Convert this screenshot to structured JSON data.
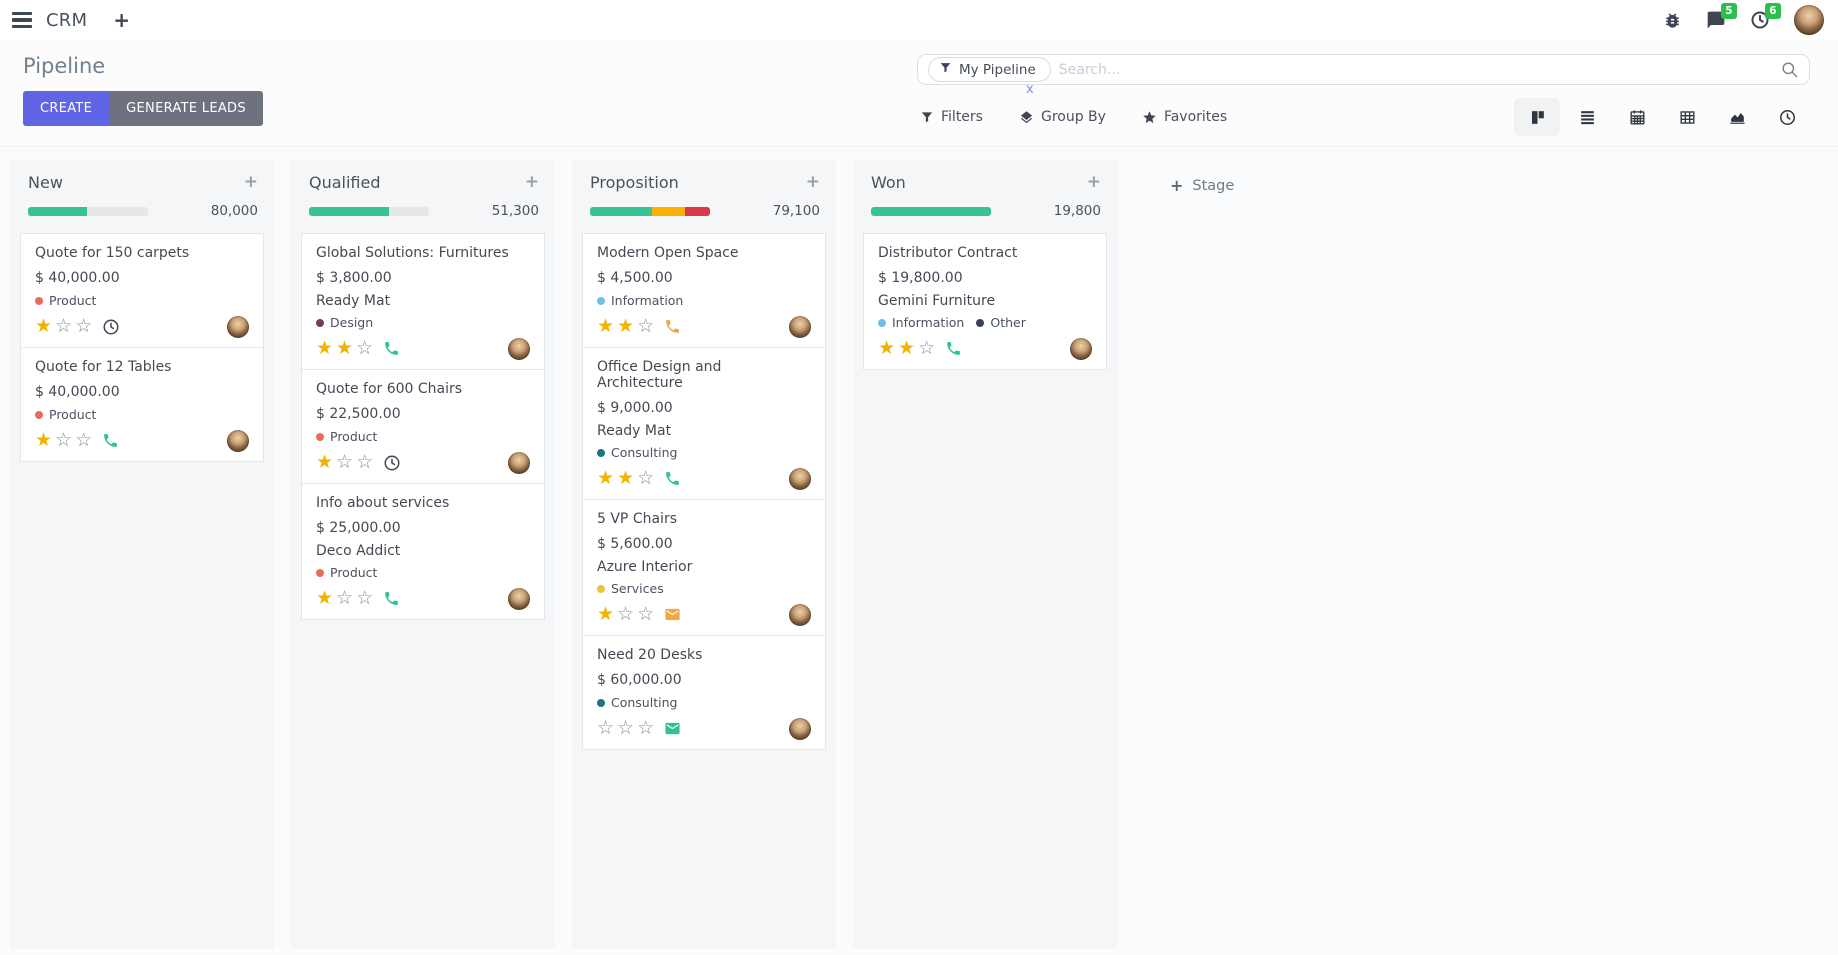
{
  "navbar": {
    "app_name": "CRM",
    "messages_badge": "5",
    "activities_badge": "6"
  },
  "control_panel": {
    "title": "Pipeline",
    "buttons": {
      "create": "CREATE",
      "generate_leads": "GENERATE LEADS"
    },
    "search": {
      "facet": "My Pipeline",
      "facet_remove": "x",
      "placeholder": "Search..."
    },
    "menus": {
      "filters": "Filters",
      "group_by": "Group By",
      "favorites": "Favorites"
    },
    "view_switcher": [
      "kanban",
      "list",
      "calendar",
      "pivot",
      "graph",
      "activity"
    ],
    "active_view": "kanban"
  },
  "kanban": {
    "stage_add_label": "Stage",
    "colors": {
      "green": "#39c392",
      "orange": "#fbb005",
      "red": "#d9394a",
      "track": "#e5e7e9"
    },
    "columns": [
      {
        "name": "New",
        "total": "80,000",
        "progress": [
          {
            "color": "#39c392",
            "pct": 49
          }
        ],
        "cards": [
          {
            "title": "Quote for 150 carpets",
            "amount": "$ 40,000.00",
            "tags": [
              {
                "color": "#e86c5a",
                "label": "Product"
              }
            ],
            "stars": 1,
            "activity_icon": "clock"
          },
          {
            "title": "Quote for 12 Tables",
            "amount": "$ 40,000.00",
            "tags": [
              {
                "color": "#e86c5a",
                "label": "Product"
              }
            ],
            "stars": 1,
            "activity_icon": "phone-green"
          }
        ]
      },
      {
        "name": "Qualified",
        "total": "51,300",
        "progress": [
          {
            "color": "#39c392",
            "pct": 67
          }
        ],
        "cards": [
          {
            "title": "Global Solutions: Furnitures",
            "amount": "$ 3,800.00",
            "partner": "Ready Mat",
            "tags": [
              {
                "color": "#6d3f62",
                "label": "Design"
              }
            ],
            "stars": 2,
            "activity_icon": "phone-green"
          },
          {
            "title": "Quote for 600 Chairs",
            "amount": "$ 22,500.00",
            "tags": [
              {
                "color": "#e86c5a",
                "label": "Product"
              }
            ],
            "stars": 1,
            "activity_icon": "clock"
          },
          {
            "title": "Info about services",
            "amount": "$ 25,000.00",
            "partner": "Deco Addict",
            "tags": [
              {
                "color": "#e86c5a",
                "label": "Product"
              }
            ],
            "stars": 1,
            "activity_icon": "phone-green"
          }
        ]
      },
      {
        "name": "Proposition",
        "total": "79,100",
        "progress": [
          {
            "color": "#39c392",
            "pct": 52
          },
          {
            "color": "#fbb005",
            "pct": 27
          },
          {
            "color": "#d9394a",
            "pct": 21
          }
        ],
        "cards": [
          {
            "title": "Modern Open Space",
            "amount": "$ 4,500.00",
            "tags": [
              {
                "color": "#6fc0e8",
                "label": "Information"
              }
            ],
            "stars": 2,
            "activity_icon": "phone-orange"
          },
          {
            "title": "Office Design and Architecture",
            "amount": "$ 9,000.00",
            "partner": "Ready Mat",
            "tags": [
              {
                "color": "#1b7580",
                "label": "Consulting"
              }
            ],
            "stars": 2,
            "activity_icon": "phone-green"
          },
          {
            "title": "5 VP Chairs",
            "amount": "$ 5,600.00",
            "partner": "Azure Interior",
            "tags": [
              {
                "color": "#efc23c",
                "label": "Services"
              }
            ],
            "stars": 1,
            "activity_icon": "mail-orange"
          },
          {
            "title": "Need 20 Desks",
            "amount": "$ 60,000.00",
            "tags": [
              {
                "color": "#1b7580",
                "label": "Consulting"
              }
            ],
            "stars": 0,
            "activity_icon": "mail-green"
          }
        ]
      },
      {
        "name": "Won",
        "total": "19,800",
        "progress": [
          {
            "color": "#39c392",
            "pct": 100
          }
        ],
        "cards": [
          {
            "title": "Distributor Contract",
            "amount": "$ 19,800.00",
            "partner": "Gemini Furniture",
            "tags": [
              {
                "color": "#6fc0e8",
                "label": "Information"
              },
              {
                "color": "#3a4352",
                "label": "Other"
              }
            ],
            "stars": 2,
            "activity_icon": "phone-green"
          }
        ]
      }
    ]
  }
}
